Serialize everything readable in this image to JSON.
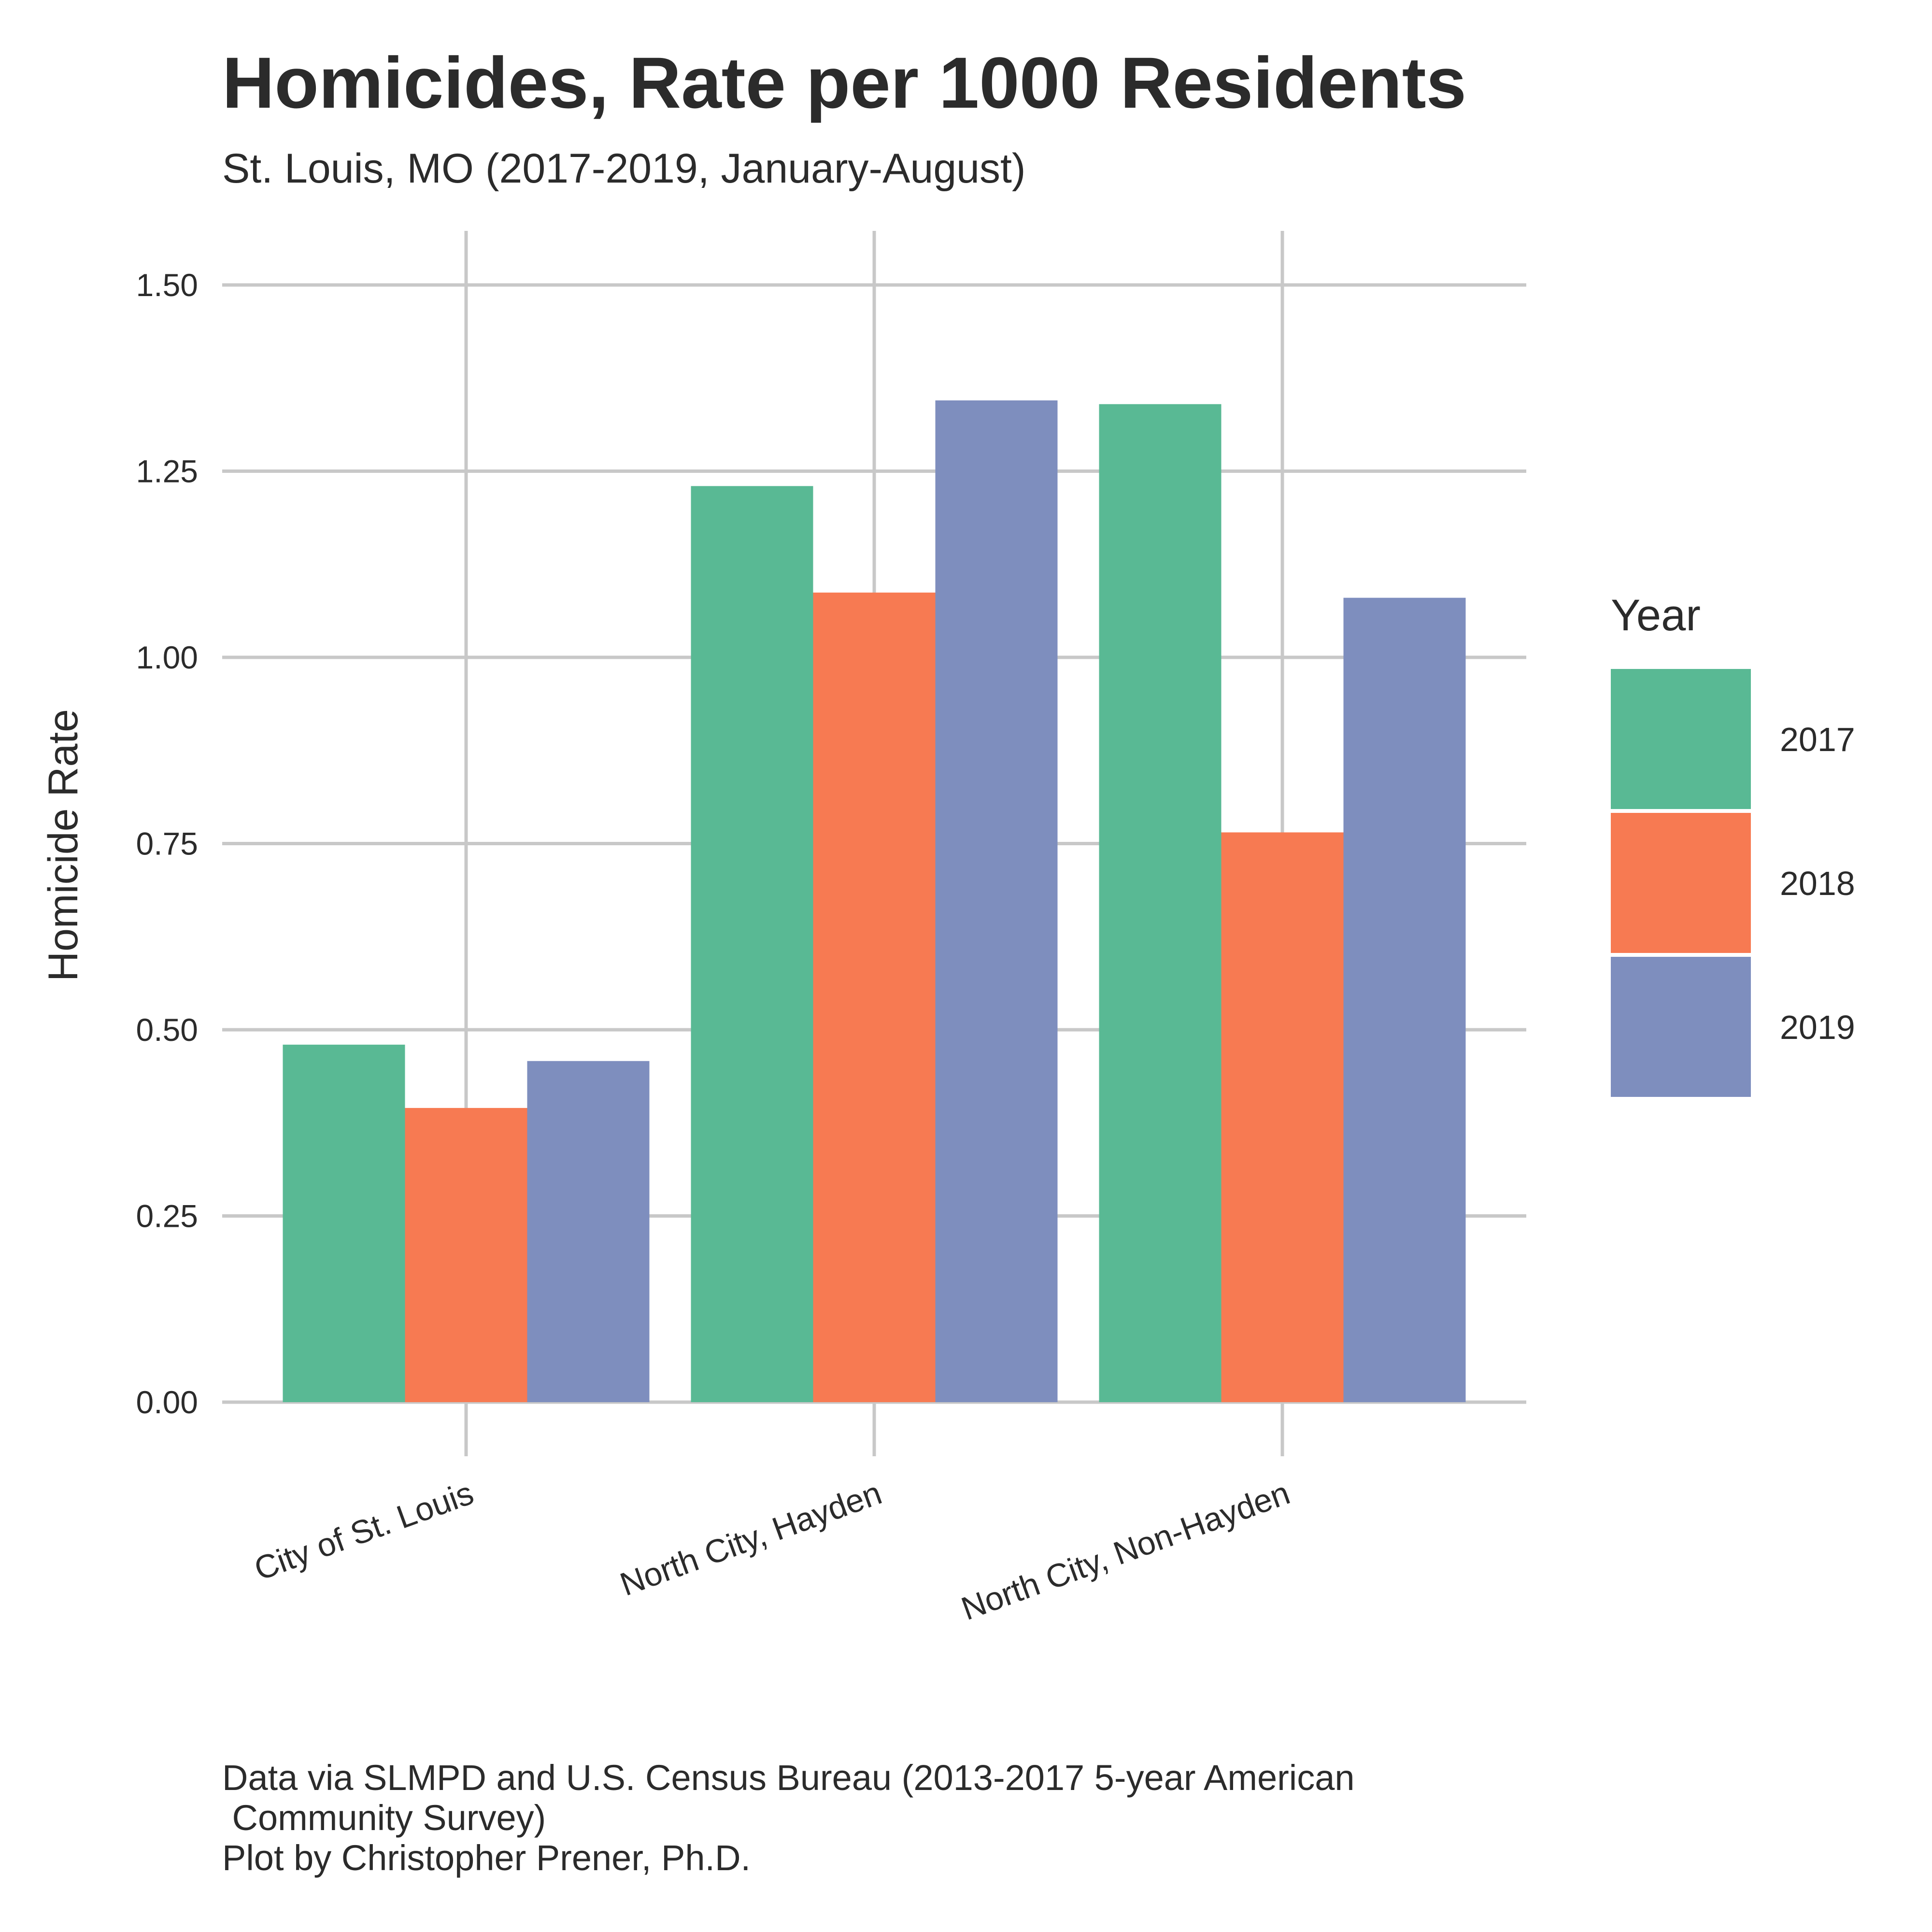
{
  "chart_data": {
    "type": "bar",
    "title": "Homicides, Rate per 1000 Residents",
    "subtitle": "St. Louis, MO (2017-2019, January-August)",
    "xlabel": "",
    "ylabel": "Homicide Rate",
    "categories": [
      "City of St. Louis",
      "North City, Hayden",
      "North City, Non-Hayden"
    ],
    "series": [
      {
        "name": "2017",
        "values": [
          0.48,
          1.23,
          1.34
        ],
        "color": "#59b994"
      },
      {
        "name": "2018",
        "values": [
          0.395,
          1.087,
          0.765
        ],
        "color": "#f77a52"
      },
      {
        "name": "2019",
        "values": [
          0.458,
          1.345,
          1.08
        ],
        "color": "#7e8ebe"
      }
    ],
    "ylim": [
      0,
      1.5
    ],
    "yticks": [
      "0.00",
      "0.25",
      "0.50",
      "0.75",
      "1.00",
      "1.25",
      "1.50"
    ],
    "ytick_values": [
      0,
      0.25,
      0.5,
      0.75,
      1.0,
      1.25,
      1.5
    ],
    "grid": true,
    "legend": {
      "title": "Year",
      "position": "right"
    },
    "caption": "Data via SLMPD and U.S. Census Bureau (2013-2017 5-year American\n Community Survey)\nPlot by Christopher Prener, Ph.D."
  }
}
